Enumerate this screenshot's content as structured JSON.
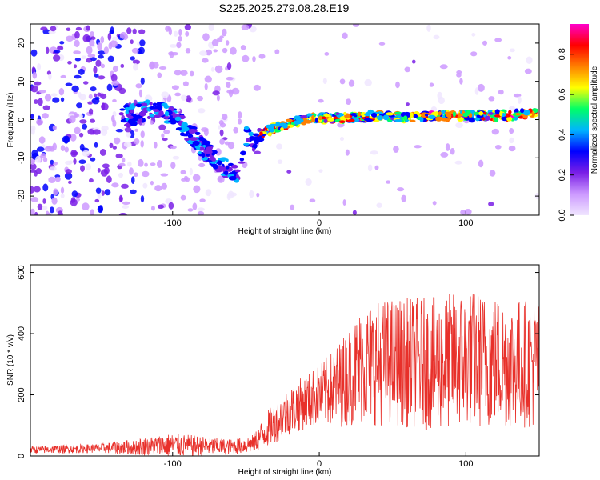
{
  "title": "S225.2025.279.08.28.E19",
  "chart_data": [
    {
      "type": "heatmap",
      "xlabel": "Height of straight line (km)",
      "ylabel": "Frequency (Hz)",
      "xlim": [
        -197,
        150
      ],
      "ylim": [
        -25,
        25
      ],
      "xticks": [
        -100,
        0,
        100
      ],
      "yticks": [
        -20,
        -10,
        0,
        10,
        20
      ],
      "colorbar": {
        "label": "Normalized spectral amplitude",
        "range": [
          0,
          0.95
        ],
        "ticks": [
          0.0,
          0.2,
          0.4,
          0.6,
          0.8
        ],
        "colormap": [
          "#f0e6ff",
          "#cc99ff",
          "#7a1fe6",
          "#0000ff",
          "#00b4ff",
          "#00ff66",
          "#ffff00",
          "#ff8000",
          "#ff0000",
          "#ff00cc"
        ]
      },
      "ridge": {
        "description_points_x": [
          -130,
          -110,
          -100,
          -90,
          -80,
          -70,
          -60,
          -55,
          -50,
          -45,
          -40,
          -30,
          -20,
          -10,
          0,
          20,
          40,
          60,
          80,
          100,
          120,
          140,
          150
        ],
        "description_points_y": [
          1,
          3,
          1,
          -3,
          -7,
          -11,
          -13,
          -14,
          -4,
          -6,
          -4,
          -2,
          -1,
          0,
          0.5,
          0.5,
          1,
          0.5,
          1,
          1,
          1,
          1.5,
          2
        ]
      }
    },
    {
      "type": "line",
      "xlabel": "Height of straight line (km)",
      "ylabel": "SNR (10 * v/v)",
      "xlim": [
        -197,
        150
      ],
      "ylim": [
        0,
        625
      ],
      "xticks": [
        -100,
        0,
        100
      ],
      "yticks": [
        0,
        200,
        400,
        600
      ],
      "color": "#e8302a",
      "envelope": {
        "x": [
          -197,
          -150,
          -100,
          -60,
          -45,
          -35,
          -20,
          0,
          10,
          20,
          30,
          50,
          80,
          100,
          120,
          150
        ],
        "mean": [
          20,
          25,
          35,
          30,
          40,
          90,
          150,
          200,
          220,
          260,
          300,
          310,
          300,
          320,
          310,
          300
        ],
        "spread": [
          12,
          15,
          40,
          25,
          30,
          60,
          80,
          100,
          130,
          160,
          200,
          210,
          220,
          230,
          220,
          210
        ]
      }
    }
  ]
}
